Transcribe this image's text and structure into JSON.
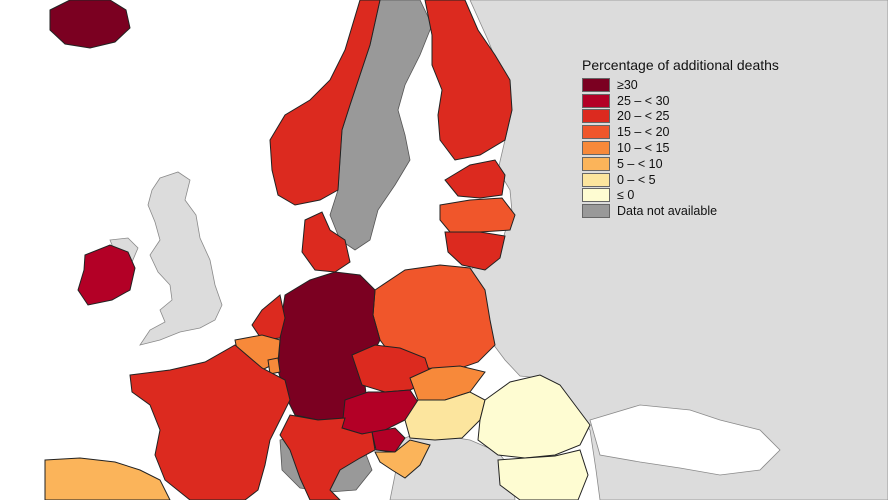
{
  "map": {
    "legend": {
      "title": "Percentage of additional deaths",
      "items": [
        {
          "label": "≥30",
          "color": "#7b0021"
        },
        {
          "label": "25 – < 30",
          "color": "#b30026"
        },
        {
          "label": "20 – < 25",
          "color": "#dc2a1f"
        },
        {
          "label": "15 – < 20",
          "color": "#f0562b"
        },
        {
          "label": "10 – < 15",
          "color": "#f7893a"
        },
        {
          "label": "5 – < 10",
          "color": "#fbb45a"
        },
        {
          "label": "0 – < 5",
          "color": "#fce59e"
        },
        {
          "label": "≤ 0",
          "color": "#fefcd2"
        },
        {
          "label": "Data not available",
          "color": "#999999"
        }
      ]
    },
    "colors": {
      "sea": "#ffffff",
      "non_reporting_land": "#dcdcdc",
      "border": "#222222"
    }
  }
}
